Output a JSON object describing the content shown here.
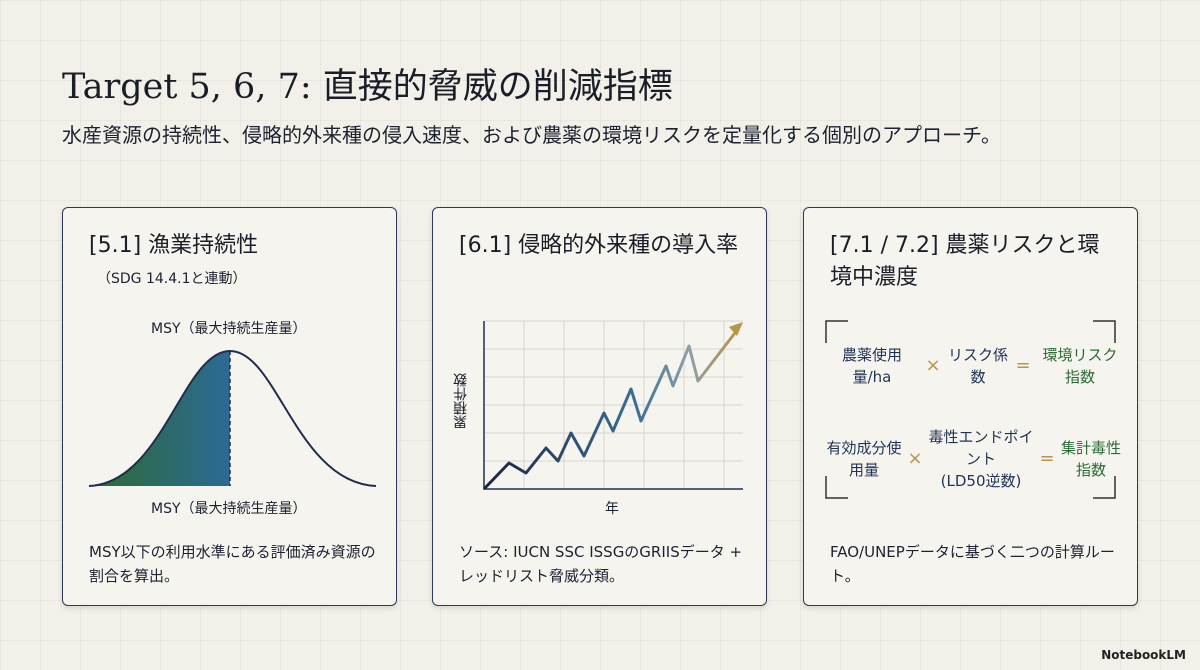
{
  "header": {
    "title": "Target 5, 6, 7: 直接的脅威の削減指標",
    "subtitle": "水産資源の持続性、侵略的外来種の侵入速度、および農薬の環境リスクを定量化する個別のアプローチ。"
  },
  "cards": [
    {
      "title": "[5.1] 漁業持続性",
      "note": "（SDG 14.4.1と連動）",
      "top_label": "MSY（最大持続生産量）",
      "bottom_label": "MSY（最大持続生産量）",
      "description": "MSY以下の利用水準にある評価済み資源の割合を算出。"
    },
    {
      "title": "[6.1] 侵略的外来種の導入率",
      "y_label": "累積件数",
      "x_label": "年",
      "description": "ソース: IUCN SSC ISSGのGRIISデータ + レッドリスト脅威分類。"
    },
    {
      "title": "[7.1 / 7.2] 農薬リスクと環境中濃度",
      "formulas": [
        {
          "term1": "農薬使用量/ha",
          "times": "×",
          "term2": "リスク係数",
          "equals": "=",
          "result": "環境リスク指数"
        },
        {
          "term1": "有効成分使用量",
          "times": "×",
          "term2": "毒性エンドポイント",
          "term2_sub": "(LD50逆数)",
          "equals": "=",
          "result": "集計毒性指数"
        }
      ],
      "description": "FAO/UNEPデータに基づく二つの計算ルート。"
    }
  ],
  "footer": {
    "brand": "NotebookLM"
  }
}
